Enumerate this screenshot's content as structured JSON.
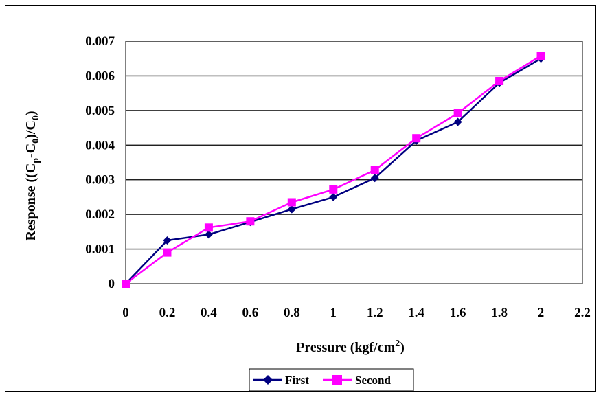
{
  "chart_data": {
    "type": "line",
    "title": "",
    "xlabel": {
      "base": "Pressure (kgf/cm",
      "sup": "2",
      "tail": ")"
    },
    "ylabel": {
      "a": "Response ((C",
      "b": "p",
      "c": "-C",
      "d": "0",
      "e": ")/C",
      "f": "0",
      "g": ")"
    },
    "xlim": [
      0,
      2.2
    ],
    "ylim": [
      0,
      0.007
    ],
    "x_ticks": [
      "0",
      "0.2",
      "0.4",
      "0.6",
      "0.8",
      "1",
      "1.2",
      "1.4",
      "1.6",
      "1.8",
      "2",
      "2.2"
    ],
    "y_ticks": [
      "0",
      "0.001",
      "0.002",
      "0.003",
      "0.004",
      "0.005",
      "0.006",
      "0.007"
    ],
    "grid": "horizontal",
    "legend_position": "bottom",
    "x": [
      0,
      0.2,
      0.4,
      0.6,
      0.8,
      1.0,
      1.2,
      1.4,
      1.6,
      1.8,
      2.0
    ],
    "series": [
      {
        "name": "First",
        "color": "#000080",
        "marker": "diamond",
        "values": [
          0,
          0.00125,
          0.00142,
          0.00178,
          0.00215,
          0.0025,
          0.00305,
          0.00413,
          0.00467,
          0.0058,
          0.0065
        ]
      },
      {
        "name": "Second",
        "color": "#ff00ff",
        "marker": "square",
        "values": [
          0,
          0.0009,
          0.00162,
          0.0018,
          0.00235,
          0.00272,
          0.00328,
          0.0042,
          0.00492,
          0.00585,
          0.00658
        ]
      }
    ]
  }
}
